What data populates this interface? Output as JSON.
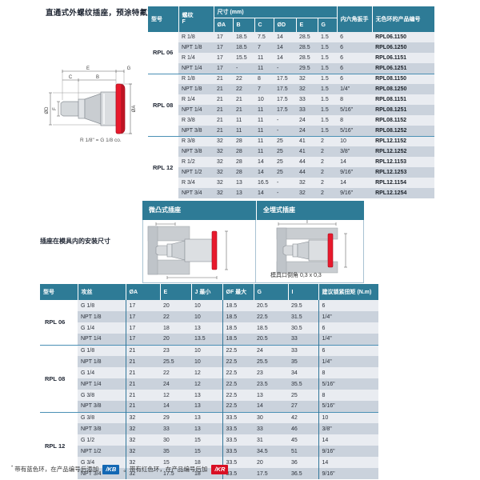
{
  "page": {
    "title": "直通式外螺纹插座，预涂特氟龙*"
  },
  "drawing": {
    "caption": "R 1/8\" = G 1/8 co.",
    "labels": {
      "e": "E",
      "g": "G",
      "c": "C",
      "b": "B",
      "od": "ØD",
      "f": "F",
      "oa": "ØA"
    }
  },
  "table1": {
    "header": {
      "model": "型号",
      "thread": "螺纹\nF",
      "dims_group": "尺寸 (mm)",
      "dims": [
        "ØA",
        "B",
        "C",
        "ØD",
        "E",
        "G"
      ],
      "hex": "内六角扳手",
      "part": "无色环的产品编号"
    },
    "groups": [
      {
        "model": "RPL 06",
        "rows": [
          [
            "R 1/8",
            "17",
            "18.5",
            "7.5",
            "14",
            "28.5",
            "1.5",
            "6",
            "RPL06.1150"
          ],
          [
            "NPT 1/8",
            "17",
            "18.5",
            "7",
            "14",
            "28.5",
            "1.5",
            "6",
            "RPL06.1250"
          ],
          [
            "R 1/4",
            "17",
            "15.5",
            "11",
            "14",
            "28.5",
            "1.5",
            "6",
            "RPL06.1151"
          ],
          [
            "NPT 1/4",
            "17",
            "-",
            "11",
            "-",
            "29.5",
            "1.5",
            "6",
            "RPL06.1251"
          ]
        ]
      },
      {
        "model": "RPL 08",
        "rows": [
          [
            "R 1/8",
            "21",
            "22",
            "8",
            "17.5",
            "32",
            "1.5",
            "6",
            "RPL08.1150"
          ],
          [
            "NPT 1/8",
            "21",
            "22",
            "7",
            "17.5",
            "32",
            "1.5",
            "1/4\"",
            "RPL08.1250"
          ],
          [
            "R 1/4",
            "21",
            "21",
            "10",
            "17.5",
            "33",
            "1.5",
            "8",
            "RPL08.1151"
          ],
          [
            "NPT 1/4",
            "21",
            "21",
            "11",
            "17.5",
            "33",
            "1.5",
            "5/16\"",
            "RPL08.1251"
          ],
          [
            "R 3/8",
            "21",
            "11",
            "11",
            "-",
            "24",
            "1.5",
            "8",
            "RPL08.1152"
          ],
          [
            "NPT 3/8",
            "21",
            "11",
            "11",
            "-",
            "24",
            "1.5",
            "5/16\"",
            "RPL08.1252"
          ]
        ]
      },
      {
        "model": "RPL 12",
        "rows": [
          [
            "R 3/8",
            "32",
            "28",
            "11",
            "25",
            "41",
            "2",
            "10",
            "RPL12.1152"
          ],
          [
            "NPT 3/8",
            "32",
            "28",
            "11",
            "25",
            "41",
            "2",
            "3/8\"",
            "RPL12.1252"
          ],
          [
            "R 1/2",
            "32",
            "28",
            "14",
            "25",
            "44",
            "2",
            "14",
            "RPL12.1153"
          ],
          [
            "NPT 1/2",
            "32",
            "28",
            "14",
            "25",
            "44",
            "2",
            "9/16\"",
            "RPL12.1253"
          ],
          [
            "R 3/4",
            "32",
            "13",
            "16.5",
            "-",
            "32",
            "2",
            "14",
            "RPL12.1154"
          ],
          [
            "NPT 3/4",
            "32",
            "13",
            "14",
            "-",
            "32",
            "2",
            "9/16\"",
            "RPL12.1254"
          ]
        ]
      }
    ]
  },
  "mid": {
    "left_title": "微凸式插座",
    "right_title": "全埋式插座",
    "chamfer_note": "模具口倒角 0,3 x 0,3",
    "side_label": "插座在模具内的安装尺寸",
    "label_i": "I"
  },
  "table2": {
    "header": [
      "型号",
      "攻丝",
      "ØA",
      "E",
      "J 最小",
      "ØF 最大",
      "G",
      "I",
      "建议锁紧扭矩 (N.m)"
    ],
    "groups": [
      {
        "model": "RPL 06",
        "rows": [
          [
            "G 1/8",
            "17",
            "20",
            "10",
            "18.5",
            "20.5",
            "29.5",
            "6"
          ],
          [
            "NPT 1/8",
            "17",
            "22",
            "10",
            "18.5",
            "22.5",
            "31.5",
            "1/4\""
          ],
          [
            "G 1/4",
            "17",
            "18",
            "13",
            "18.5",
            "18.5",
            "30.5",
            "6"
          ],
          [
            "NPT 1/4",
            "17",
            "20",
            "13.5",
            "18.5",
            "20.5",
            "33",
            "1/4\""
          ]
        ]
      },
      {
        "model": "RPL 08",
        "rows": [
          [
            "G 1/8",
            "21",
            "23",
            "10",
            "22.5",
            "24",
            "33",
            "6"
          ],
          [
            "NPT 1/8",
            "21",
            "25.5",
            "10",
            "22.5",
            "25.5",
            "35",
            "1/4\""
          ],
          [
            "G 1/4",
            "21",
            "22",
            "12",
            "22.5",
            "23",
            "34",
            "8"
          ],
          [
            "NPT 1/4",
            "21",
            "24",
            "12",
            "22.5",
            "23.5",
            "35.5",
            "5/16\""
          ],
          [
            "G 3/8",
            "21",
            "12",
            "13",
            "22.5",
            "13",
            "25",
            "8"
          ],
          [
            "NPT 3/8",
            "21",
            "14",
            "13",
            "22.5",
            "14",
            "27",
            "5/16\""
          ]
        ]
      },
      {
        "model": "RPL 12",
        "rows": [
          [
            "G 3/8",
            "32",
            "29",
            "13",
            "33.5",
            "30",
            "42",
            "10"
          ],
          [
            "NPT 3/8",
            "32",
            "33",
            "13",
            "33.5",
            "33",
            "46",
            "3/8\""
          ],
          [
            "G 1/2",
            "32",
            "30",
            "15",
            "33.5",
            "31",
            "45",
            "14"
          ],
          [
            "NPT 1/2",
            "32",
            "35",
            "15",
            "33.5",
            "34.5",
            "51",
            "9/16\""
          ],
          [
            "G 3/4",
            "32",
            "15",
            "18",
            "33.5",
            "20",
            "36",
            "14"
          ],
          [
            "NPT 3/4",
            "32",
            "17.5",
            "18",
            "33.5",
            "17.5",
            "36.5",
            "9/16\""
          ]
        ]
      }
    ]
  },
  "footer": {
    "asterisk": "*",
    "text_blue": "带有蓝色环，在产品编号后添加",
    "badge_blue": "/KB",
    "text_red": "。带有红色环，在产品编号后加",
    "badge_red": "/KR"
  },
  "colors": {
    "header_teal": "#2e7b96",
    "row_light": "#e9ecf1",
    "row_dark": "#cad2dc",
    "group_line": "#4a90b5",
    "badge_blue_bg": "#1368b4",
    "badge_red_bg": "#d90f23",
    "flange_red": "#e8192c"
  }
}
